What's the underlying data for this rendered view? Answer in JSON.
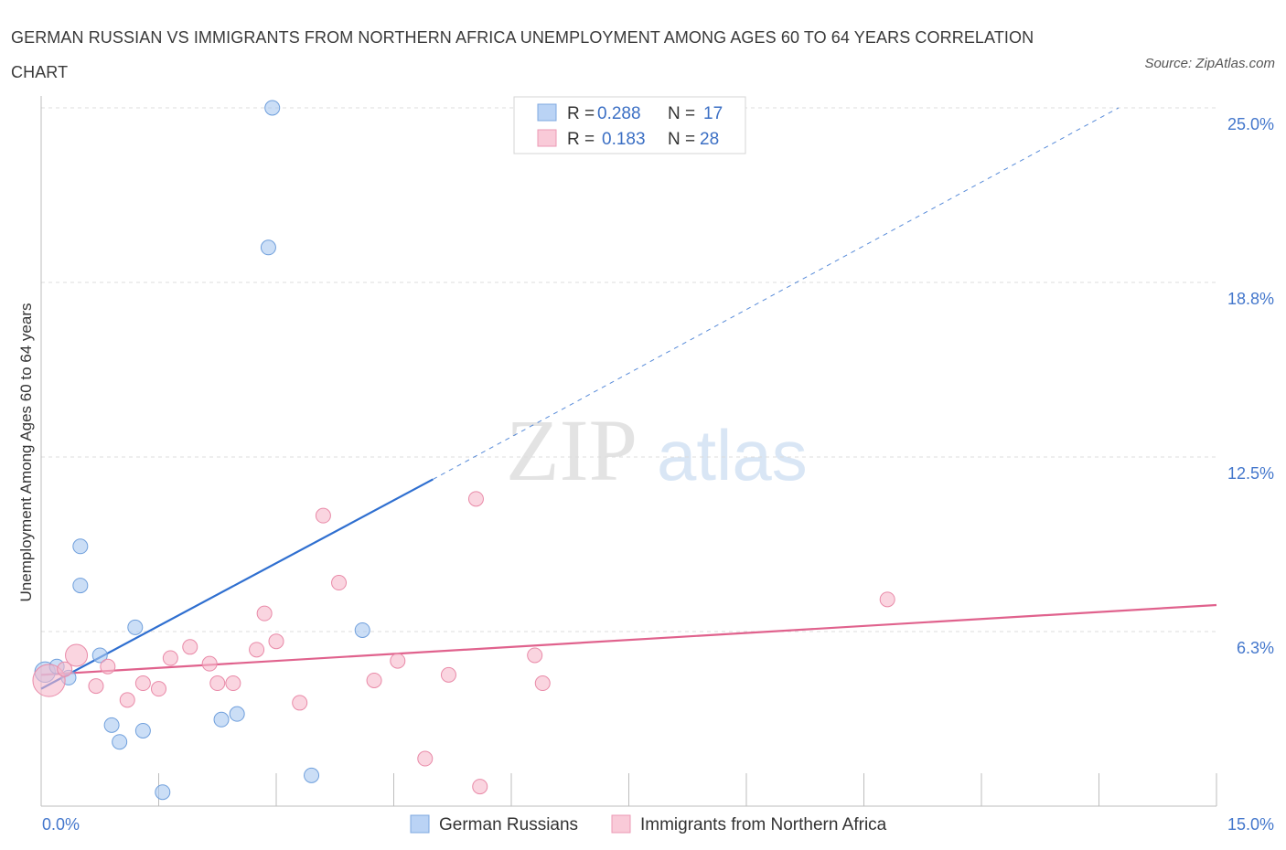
{
  "title": "GERMAN RUSSIAN VS IMMIGRANTS FROM NORTHERN AFRICA UNEMPLOYMENT AMONG AGES 60 TO 64 YEARS CORRELATION CHART",
  "source": "Source: ZipAtlas.com",
  "watermark": {
    "zip": "ZIP",
    "atlas": "atlas"
  },
  "chart_data": {
    "type": "scatter",
    "xlabel": "",
    "ylabel": "Unemployment Among Ages 60 to 64 years",
    "xlim": [
      0,
      15
    ],
    "ylim": [
      0,
      25
    ],
    "x_tick_labels": [
      {
        "value": 0,
        "label": "0.0%"
      },
      {
        "value": 15,
        "label": "15.0%"
      }
    ],
    "y_tick_labels": [
      {
        "value": 6.25,
        "label": "6.3%"
      },
      {
        "value": 12.5,
        "label": "12.5%"
      },
      {
        "value": 18.75,
        "label": "18.8%"
      },
      {
        "value": 25,
        "label": "25.0%"
      }
    ],
    "legend": [
      {
        "name": "German Russians",
        "r_label": "R =",
        "r": "0.288",
        "n_label": "N =",
        "n": "17",
        "color": "#a9c8f0",
        "stroke": "#6f9fdc"
      },
      {
        "name": "Immigrants from Northern Africa",
        "r_label": "R =",
        "r": "0.183",
        "n_label": "N =",
        "n": "28",
        "color": "#f7b9cc",
        "stroke": "#e98aa8"
      }
    ],
    "series": [
      {
        "name": "German Russians",
        "color": "#a9c8f0",
        "stroke": "#6f9fdc",
        "points": [
          {
            "x": 0.05,
            "y": 4.8,
            "s": 1.4
          },
          {
            "x": 0.2,
            "y": 5.0,
            "s": 1
          },
          {
            "x": 0.35,
            "y": 4.6,
            "s": 1
          },
          {
            "x": 0.5,
            "y": 9.3,
            "s": 1
          },
          {
            "x": 0.5,
            "y": 7.9,
            "s": 1
          },
          {
            "x": 0.75,
            "y": 5.4,
            "s": 1
          },
          {
            "x": 0.9,
            "y": 2.9,
            "s": 1
          },
          {
            "x": 1.0,
            "y": 2.3,
            "s": 1
          },
          {
            "x": 1.2,
            "y": 6.4,
            "s": 1
          },
          {
            "x": 1.3,
            "y": 2.7,
            "s": 1
          },
          {
            "x": 1.55,
            "y": 0.5,
            "s": 1
          },
          {
            "x": 2.3,
            "y": 3.1,
            "s": 1
          },
          {
            "x": 2.5,
            "y": 3.3,
            "s": 1
          },
          {
            "x": 2.9,
            "y": 20.0,
            "s": 1
          },
          {
            "x": 2.95,
            "y": 25.0,
            "s": 1
          },
          {
            "x": 3.45,
            "y": 1.1,
            "s": 1
          },
          {
            "x": 4.1,
            "y": 6.3,
            "s": 1
          }
        ],
        "trend": {
          "x0": 0.0,
          "y0": 4.2,
          "x1": 5.0,
          "y1": 11.7,
          "dashed_to_x": 13.75,
          "dashed_to_y": 25.0,
          "color": "#2f6fd0"
        }
      },
      {
        "name": "Immigrants from Northern Africa",
        "color": "#f7b9cc",
        "stroke": "#e98aa8",
        "points": [
          {
            "x": 0.1,
            "y": 4.5,
            "s": 2.2
          },
          {
            "x": 0.3,
            "y": 4.9,
            "s": 1
          },
          {
            "x": 0.45,
            "y": 5.4,
            "s": 1.5
          },
          {
            "x": 0.7,
            "y": 4.3,
            "s": 1
          },
          {
            "x": 0.85,
            "y": 5.0,
            "s": 1
          },
          {
            "x": 1.1,
            "y": 3.8,
            "s": 1
          },
          {
            "x": 1.3,
            "y": 4.4,
            "s": 1
          },
          {
            "x": 1.5,
            "y": 4.2,
            "s": 1
          },
          {
            "x": 1.65,
            "y": 5.3,
            "s": 1
          },
          {
            "x": 1.9,
            "y": 5.7,
            "s": 1
          },
          {
            "x": 2.15,
            "y": 5.1,
            "s": 1
          },
          {
            "x": 2.25,
            "y": 4.4,
            "s": 1
          },
          {
            "x": 2.45,
            "y": 4.4,
            "s": 1
          },
          {
            "x": 2.75,
            "y": 5.6,
            "s": 1
          },
          {
            "x": 2.85,
            "y": 6.9,
            "s": 1
          },
          {
            "x": 3.0,
            "y": 5.9,
            "s": 1
          },
          {
            "x": 3.3,
            "y": 3.7,
            "s": 1
          },
          {
            "x": 3.6,
            "y": 10.4,
            "s": 1
          },
          {
            "x": 3.8,
            "y": 8.0,
            "s": 1
          },
          {
            "x": 4.25,
            "y": 4.5,
            "s": 1
          },
          {
            "x": 4.55,
            "y": 5.2,
            "s": 1
          },
          {
            "x": 4.9,
            "y": 1.7,
            "s": 1
          },
          {
            "x": 5.2,
            "y": 4.7,
            "s": 1
          },
          {
            "x": 5.55,
            "y": 11.0,
            "s": 1
          },
          {
            "x": 5.6,
            "y": 0.7,
            "s": 1
          },
          {
            "x": 6.3,
            "y": 5.4,
            "s": 1
          },
          {
            "x": 6.4,
            "y": 4.4,
            "s": 1
          },
          {
            "x": 10.8,
            "y": 7.4,
            "s": 1
          }
        ],
        "trend": {
          "x0": 0.0,
          "y0": 4.7,
          "x1": 15.0,
          "y1": 7.2,
          "color": "#e0628d"
        }
      }
    ]
  }
}
